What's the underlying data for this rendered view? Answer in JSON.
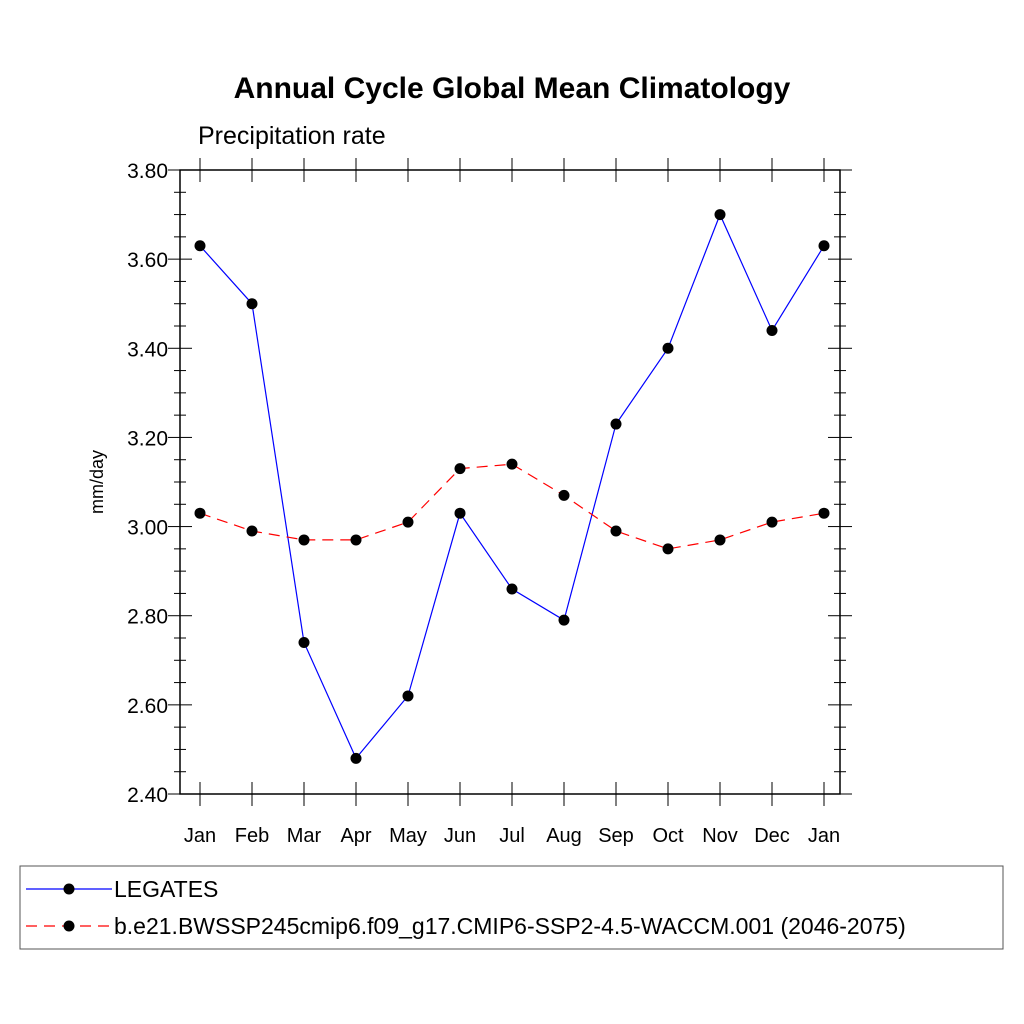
{
  "chart_data": {
    "type": "line",
    "title": "Annual Cycle Global Mean Climatology",
    "subtitle": "Precipitation rate",
    "ylabel": "mm/day",
    "xlabel": "",
    "ylim": [
      2.4,
      3.8
    ],
    "yticks": [
      "3.80",
      "3.60",
      "3.40",
      "3.20",
      "3.00",
      "2.80",
      "2.60",
      "2.40"
    ],
    "ytick_values": [
      3.8,
      3.6,
      3.4,
      3.2,
      3.0,
      2.8,
      2.6,
      2.4
    ],
    "categories": [
      "Jan",
      "Feb",
      "Mar",
      "Apr",
      "May",
      "Jun",
      "Jul",
      "Aug",
      "Sep",
      "Oct",
      "Nov",
      "Dec",
      "Jan"
    ],
    "grid": false,
    "legend_position": "bottom",
    "series": [
      {
        "name": "LEGATES",
        "color": "#0000ff",
        "dash": "solid",
        "marker": "filled-circle",
        "values": [
          3.63,
          3.5,
          2.74,
          2.48,
          2.62,
          3.03,
          2.86,
          2.79,
          3.23,
          3.4,
          3.7,
          3.44,
          3.63
        ]
      },
      {
        "name": "b.e21.BWSSP245cmip6.f09_g17.CMIP6-SSP2-4.5-WACCM.001 (2046-2075)",
        "color": "#ff0000",
        "dash": "dashed",
        "marker": "filled-circle",
        "values": [
          3.03,
          2.99,
          2.97,
          2.97,
          3.01,
          3.13,
          3.14,
          3.07,
          2.99,
          2.95,
          2.97,
          3.01,
          3.03
        ]
      }
    ]
  }
}
